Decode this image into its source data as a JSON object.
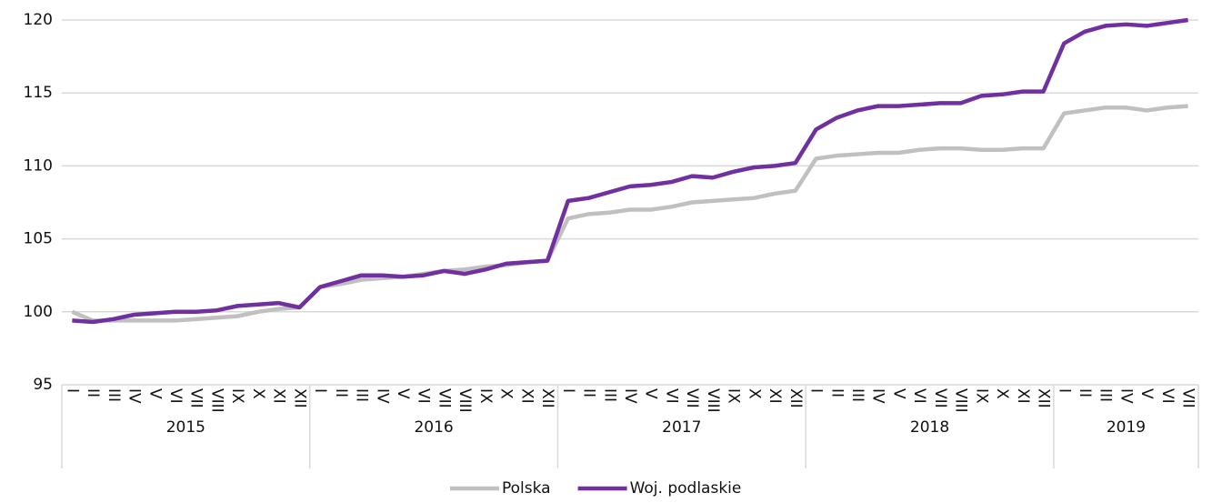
{
  "chart_data": {
    "type": "line",
    "categories": [
      "I",
      "II",
      "III",
      "IV",
      "V",
      "VI",
      "VII",
      "VIII",
      "IX",
      "X",
      "XI",
      "XII",
      "I",
      "II",
      "III",
      "IV",
      "V",
      "VI",
      "VII",
      "VIII",
      "IX",
      "X",
      "XI",
      "XII",
      "I",
      "II",
      "III",
      "IV",
      "V",
      "VI",
      "VII",
      "VIII",
      "IX",
      "X",
      "XI",
      "XII",
      "I",
      "II",
      "III",
      "IV",
      "V",
      "VI",
      "VII",
      "VIII",
      "IX",
      "X",
      "XI",
      "XII",
      "I",
      "II",
      "III",
      "IV",
      "V",
      "VI",
      "VII"
    ],
    "years": [
      "2015",
      "2016",
      "2017",
      "2018",
      "2019"
    ],
    "series": [
      {
        "name": "Polska",
        "color": "#c0c0c0",
        "values": [
          100.0,
          99.4,
          99.4,
          99.4,
          99.4,
          99.4,
          99.5,
          99.6,
          99.7,
          100.0,
          100.2,
          100.3,
          101.7,
          101.9,
          102.2,
          102.3,
          102.4,
          102.6,
          102.8,
          102.9,
          103.1,
          103.2,
          103.4,
          103.5,
          106.4,
          106.7,
          106.8,
          107.0,
          107.0,
          107.2,
          107.5,
          107.6,
          107.7,
          107.8,
          108.1,
          108.3,
          110.5,
          110.7,
          110.8,
          110.9,
          110.9,
          111.1,
          111.2,
          111.2,
          111.1,
          111.1,
          111.2,
          111.2,
          113.6,
          113.8,
          114.0,
          114.0,
          113.8,
          114.0,
          114.1
        ]
      },
      {
        "name": "Woj. podlaskie",
        "color": "#7030a0",
        "values": [
          99.4,
          99.3,
          99.5,
          99.8,
          99.9,
          100.0,
          100.0,
          100.1,
          100.4,
          100.5,
          100.6,
          100.3,
          101.7,
          102.1,
          102.5,
          102.5,
          102.4,
          102.5,
          102.8,
          102.6,
          102.9,
          103.3,
          103.4,
          103.5,
          107.6,
          107.8,
          108.2,
          108.6,
          108.7,
          108.9,
          109.3,
          109.2,
          109.6,
          109.9,
          110.0,
          110.2,
          112.5,
          113.3,
          113.8,
          114.1,
          114.1,
          114.2,
          114.3,
          114.3,
          114.8,
          114.9,
          115.1,
          115.1,
          118.4,
          119.2,
          119.6,
          119.7,
          119.6,
          119.8,
          120.0
        ]
      }
    ],
    "ylim": [
      95,
      120
    ],
    "yticks": [
      95,
      100,
      105,
      110,
      115,
      120
    ],
    "grid": true,
    "legend": "bottom"
  }
}
